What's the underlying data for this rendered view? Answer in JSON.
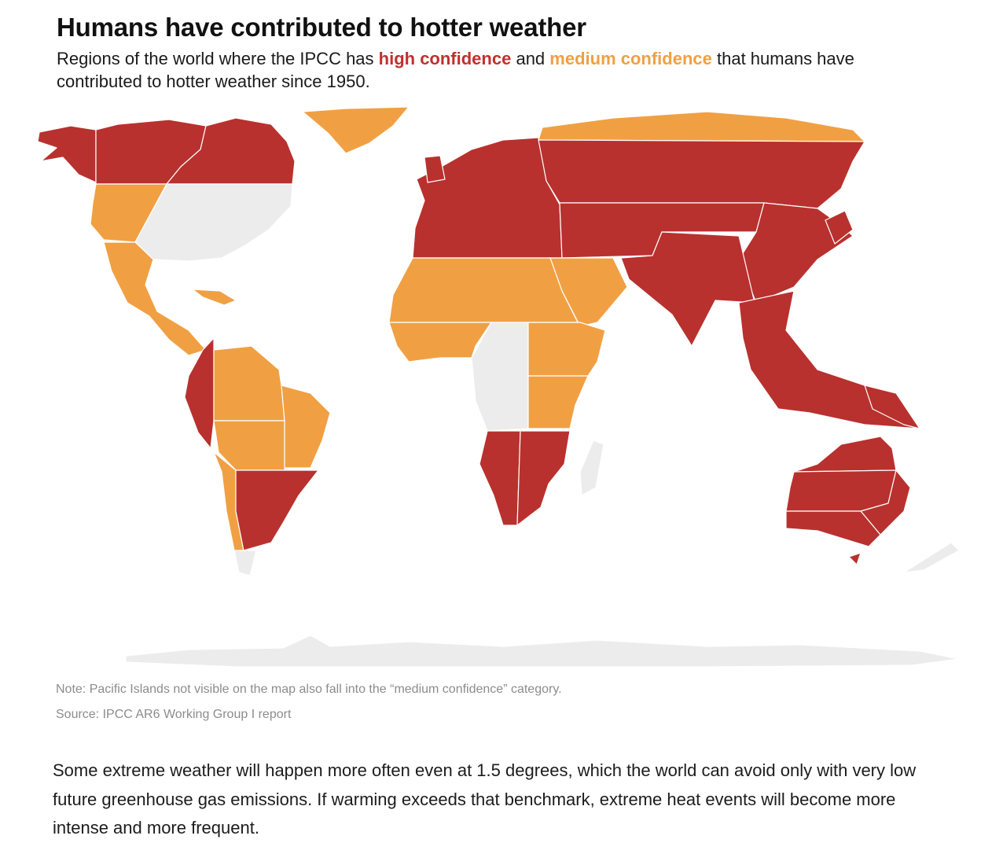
{
  "header": {
    "title": "Humans have contributed to hotter weather",
    "subtitle_before": "Regions of the world where the IPCC has ",
    "high_label": "high confidence",
    "subtitle_mid": " and ",
    "medium_label": "medium confidence",
    "subtitle_after": " that humans have contributed to hotter weather since 1950."
  },
  "colors": {
    "high_confidence": "#b8312e",
    "medium_confidence": "#f0a043",
    "no_assessment": "#ececec"
  },
  "map": {
    "categories": [
      "high confidence",
      "medium confidence",
      "not assessed"
    ],
    "regions": [
      {
        "region": "Alaska",
        "category": "high confidence"
      },
      {
        "region": "Northwest Canada",
        "category": "high confidence"
      },
      {
        "region": "Northeast Canada",
        "category": "high confidence"
      },
      {
        "region": "Greenland",
        "category": "medium confidence"
      },
      {
        "region": "Western North America",
        "category": "medium confidence"
      },
      {
        "region": "Central & Eastern North America",
        "category": "not assessed"
      },
      {
        "region": "Mexico & Central America",
        "category": "medium confidence"
      },
      {
        "region": "Caribbean",
        "category": "medium confidence"
      },
      {
        "region": "Northwestern South America",
        "category": "high confidence"
      },
      {
        "region": "Amazonia & Northern South America",
        "category": "medium confidence"
      },
      {
        "region": "Northeastern South America",
        "category": "medium confidence"
      },
      {
        "region": "South American Monsoon",
        "category": "medium confidence"
      },
      {
        "region": "Southwestern South America",
        "category": "medium confidence"
      },
      {
        "region": "Southeastern South America",
        "category": "high confidence"
      },
      {
        "region": "Southern South America",
        "category": "not assessed"
      },
      {
        "region": "Europe & Mediterranean",
        "category": "high confidence"
      },
      {
        "region": "Russian Arctic",
        "category": "medium confidence"
      },
      {
        "region": "Northern & Central Asia",
        "category": "high confidence"
      },
      {
        "region": "East & South Asia",
        "category": "high confidence"
      },
      {
        "region": "Southeast Asia",
        "category": "high confidence"
      },
      {
        "region": "Sahara",
        "category": "medium confidence"
      },
      {
        "region": "Arabian Peninsula",
        "category": "medium confidence"
      },
      {
        "region": "Western Africa",
        "category": "medium confidence"
      },
      {
        "region": "Central Africa",
        "category": "not assessed"
      },
      {
        "region": "Eastern Africa",
        "category": "medium confidence"
      },
      {
        "region": "Southern Africa",
        "category": "high confidence"
      },
      {
        "region": "Madagascar",
        "category": "not assessed"
      },
      {
        "region": "Australia",
        "category": "high confidence"
      },
      {
        "region": "New Zealand",
        "category": "not assessed"
      },
      {
        "region": "Antarctica",
        "category": "not assessed"
      }
    ]
  },
  "notes": {
    "note": "Note: Pacific Islands not visible on the map also fall into the “medium confidence” category.",
    "source": "Source: IPCC AR6 Working Group I report"
  },
  "body": {
    "paragraph": "Some extreme weather will happen more often even at 1.5 degrees, which the world can avoid only with very low future greenhouse gas emissions. If warming exceeds that benchmark, extreme heat events will become more intense and more frequent."
  }
}
